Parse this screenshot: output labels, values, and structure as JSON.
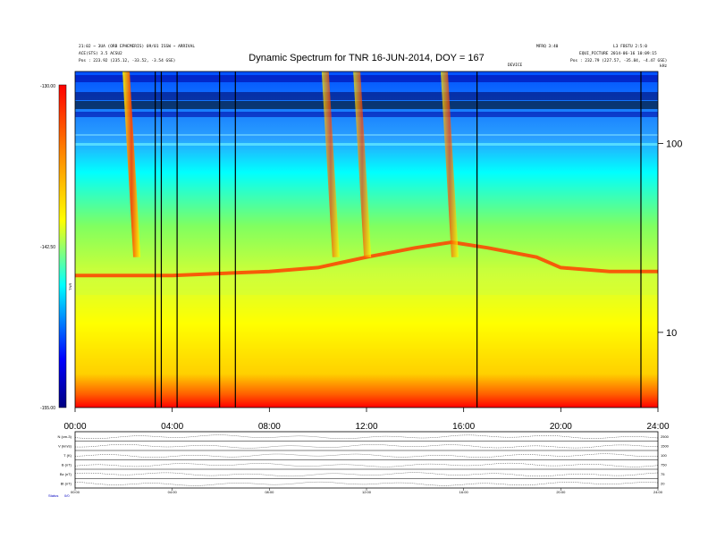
{
  "header": {
    "title": "Dynamic Spectrum for TNR 16-JUN-2014, DOY = 167",
    "left_line1": "21:02 ~ 3UA (ORB EPHEMERIS) 09/01 ISSW ~ ARRIVAL",
    "left_line2": "ACE(STS) 3.5 ACSU2",
    "left_line3": "Pos : 223.92 (235.12, -33.52, -3.54 GSE)",
    "right_line1": "MFRQ 3:40",
    "right_line2": "L3 FBSTU 2:5:0",
    "right_line3": "EQUI_PICTURE 2014-06-16 10:09:15",
    "right_line4": "Pos : 232.79 (227.57, -35.84, -4.47 GSE)",
    "corner_label": "kHz",
    "marker_label": "DEVICE"
  },
  "colorbar": {
    "ticks": [
      "-130.00",
      "-142.50",
      "-155.00"
    ],
    "label": "TNR"
  },
  "spectrogram": {
    "x_ticks": [
      "00:00",
      "04:00",
      "08:00",
      "12:00",
      "16:00",
      "20:00",
      "24:00"
    ],
    "y_ticks_right": [
      "100",
      "10"
    ]
  },
  "chart_data": {
    "type": "heatmap",
    "title": "Dynamic Spectrum for TNR 16-JUN-2014, DOY = 167",
    "x_range_hours": [
      0,
      24
    ],
    "y_scale": "log",
    "y_range_khz": [
      4,
      240
    ],
    "y_ticks_khz": [
      100,
      10
    ],
    "colorbar_range": [
      -155.0,
      -130.0
    ],
    "colorbar_ticks": [
      -130.0,
      -142.5,
      -155.0
    ],
    "colormap": [
      "#000080",
      "#0000ff",
      "#00ffff",
      "#ffff00",
      "#ff8000",
      "#ff0000"
    ],
    "data_gap_lines_hours": [
      3.3,
      3.55,
      4.2,
      5.95,
      6.6,
      16.55,
      23.3
    ],
    "type_iii_bursts_hours": [
      2.1,
      10.3,
      11.6,
      15.2
    ],
    "plasma_line_khz": [
      [
        0,
        20
      ],
      [
        4,
        20
      ],
      [
        8,
        21
      ],
      [
        10,
        22
      ],
      [
        12,
        25
      ],
      [
        14,
        28
      ],
      [
        15.5,
        30
      ],
      [
        17,
        28
      ],
      [
        19,
        25
      ],
      [
        20,
        22
      ],
      [
        22,
        21
      ],
      [
        24,
        21
      ]
    ]
  },
  "bottom_panel": {
    "row_labels": [
      "N (cm-3)",
      "V (km/s)",
      "T (K)",
      "B (nT)",
      "Bz (nT)",
      "Bt (nT)"
    ],
    "left_units": [
      "sec",
      "",
      "",
      "",
      "",
      ""
    ],
    "right_values": [
      "2500",
      "1500",
      "100",
      "750",
      "75",
      "20"
    ],
    "x_ticks": [
      "00:00",
      "04:00",
      "08:00",
      "12:00",
      "16:00",
      "20:00",
      "24:00"
    ],
    "footer_label": "Status",
    "footer_value": "0/0"
  }
}
